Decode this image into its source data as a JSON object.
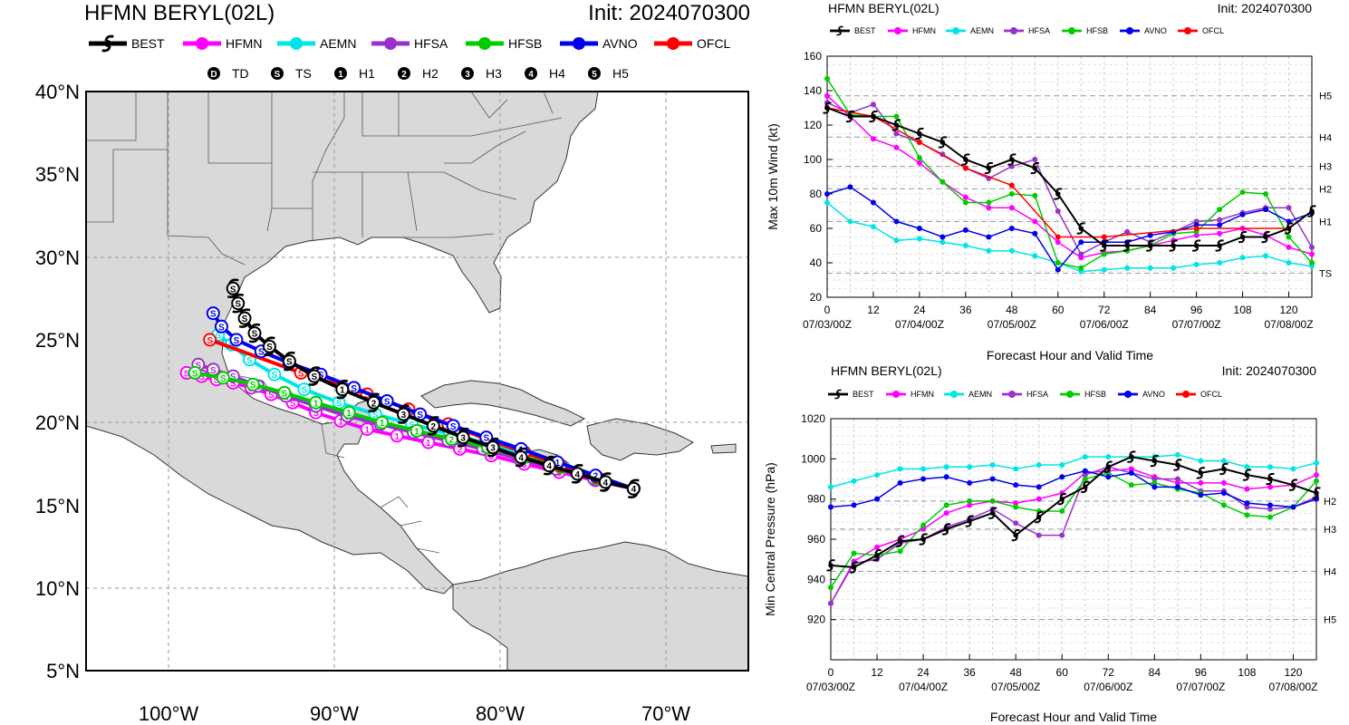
{
  "colors": {
    "BEST": "#000000",
    "HFMN": "#ff00ff",
    "AEMN": "#00e5e5",
    "HFSA": "#9932cc",
    "HFSB": "#00cc00",
    "AVNO": "#0000ee",
    "OFCL": "#ff0000"
  },
  "legend_items": [
    "BEST",
    "HFMN",
    "AEMN",
    "HFSA",
    "HFSB",
    "AVNO",
    "OFCL"
  ],
  "intensity_legend": [
    {
      "sym": "D",
      "label": "TD"
    },
    {
      "sym": "S",
      "label": "TS"
    },
    {
      "sym": "1",
      "label": "H1"
    },
    {
      "sym": "2",
      "label": "H2"
    },
    {
      "sym": "3",
      "label": "H3"
    },
    {
      "sym": "4",
      "label": "H4"
    },
    {
      "sym": "5",
      "label": "H5"
    }
  ],
  "map": {
    "title": "HFMN BERYL(02L)",
    "init": "Init: 2024070300",
    "lat_labels": [
      "40°N",
      "35°N",
      "30°N",
      "25°N",
      "20°N",
      "15°N",
      "10°N",
      "5°N"
    ],
    "lon_labels": [
      "100°W",
      "90°W",
      "80°W",
      "70°W"
    ]
  },
  "chart_data": [
    {
      "type": "line",
      "title": "HFMN BERYL(02L)",
      "init": "Init: 2024070300",
      "xlabel": "Forecast Hour and Valid Time",
      "ylabel": "Max 10m Wind (kt)",
      "xlim": [
        0,
        126
      ],
      "ylim": [
        20,
        160
      ],
      "xticks": [
        0,
        12,
        24,
        36,
        48,
        60,
        72,
        84,
        96,
        108,
        120
      ],
      "yticks": [
        20,
        40,
        60,
        80,
        100,
        120,
        140,
        160
      ],
      "date_labels": [
        {
          "x": 0,
          "label": "07/03/00Z"
        },
        {
          "x": 24,
          "label": "07/04/00Z"
        },
        {
          "x": 48,
          "label": "07/05/00Z"
        },
        {
          "x": 72,
          "label": "07/06/00Z"
        },
        {
          "x": 96,
          "label": "07/07/00Z"
        },
        {
          "x": 120,
          "label": "07/08/00Z"
        }
      ],
      "thresholds": [
        {
          "value": 137,
          "label": "H5"
        },
        {
          "value": 113,
          "label": "H4"
        },
        {
          "value": 96,
          "label": "H3"
        },
        {
          "value": 83,
          "label": "H2"
        },
        {
          "value": 64,
          "label": "H1"
        },
        {
          "value": 34,
          "label": "TS"
        }
      ],
      "series": [
        {
          "name": "BEST",
          "x": [
            0,
            6,
            12,
            18,
            24,
            30,
            36,
            42,
            48,
            54,
            60,
            66,
            72,
            78,
            84,
            90,
            96,
            102,
            108,
            114,
            120,
            126
          ],
          "values": [
            130,
            125,
            125,
            120,
            115,
            110,
            100,
            95,
            100,
            95,
            80,
            60,
            50,
            50,
            50,
            50,
            50,
            50,
            55,
            55,
            60,
            70
          ]
        },
        {
          "name": "HFMN",
          "x": [
            0,
            6,
            12,
            18,
            24,
            30,
            36,
            42,
            48,
            54,
            60,
            66,
            72,
            78,
            84,
            90,
            96,
            102,
            108,
            114,
            120,
            126
          ],
          "values": [
            137,
            125,
            112,
            107,
            98,
            87,
            78,
            72,
            72,
            64,
            52,
            43,
            46,
            47,
            50,
            53,
            56,
            57,
            60,
            56,
            49,
            45
          ]
        },
        {
          "name": "AEMN",
          "x": [
            0,
            6,
            12,
            18,
            24,
            30,
            36,
            42,
            48,
            54,
            60,
            66,
            72,
            78,
            84,
            90,
            96,
            102,
            108,
            114,
            120,
            126
          ],
          "values": [
            75,
            64,
            61,
            53,
            54,
            52,
            50,
            47,
            47,
            44,
            40,
            35,
            36,
            37,
            37,
            37,
            39,
            40,
            43,
            44,
            40,
            38
          ]
        },
        {
          "name": "HFSA",
          "x": [
            0,
            6,
            12,
            18,
            24,
            30,
            36,
            42,
            48,
            54,
            60,
            66,
            72,
            78,
            84,
            90,
            96,
            102,
            108,
            114,
            120,
            126
          ],
          "values": [
            133,
            127,
            132,
            115,
            110,
            103,
            95,
            89,
            96,
            100,
            70,
            45,
            52,
            58,
            52,
            58,
            64,
            65,
            69,
            72,
            72,
            49
          ]
        },
        {
          "name": "HFSB",
          "x": [
            0,
            6,
            12,
            18,
            24,
            30,
            36,
            42,
            48,
            54,
            60,
            66,
            72,
            78,
            84,
            90,
            96,
            102,
            108,
            114,
            120,
            126
          ],
          "values": [
            147,
            126,
            125,
            125,
            101,
            87,
            75,
            75,
            80,
            79,
            40,
            37,
            45,
            47,
            50,
            57,
            58,
            71,
            81,
            80,
            55,
            40
          ]
        },
        {
          "name": "AVNO",
          "x": [
            0,
            6,
            12,
            18,
            24,
            30,
            36,
            42,
            48,
            54,
            60,
            66,
            72,
            78,
            84,
            90,
            96,
            102,
            108,
            114,
            120,
            126
          ],
          "values": [
            80,
            84,
            75,
            64,
            60,
            55,
            59,
            55,
            60,
            57,
            36,
            52,
            52,
            52,
            56,
            58,
            62,
            62,
            68,
            71,
            64,
            69
          ]
        },
        {
          "name": "OFCL",
          "x": [
            0,
            12,
            24,
            36,
            48,
            60,
            72,
            96,
            120
          ],
          "values": [
            130,
            125,
            110,
            95,
            85,
            55,
            55,
            60,
            60
          ]
        }
      ]
    },
    {
      "type": "line",
      "title": "HFMN BERYL(02L)",
      "init": "Init: 2024070300",
      "xlabel": "Forecast Hour and Valid Time",
      "ylabel": "Min Central Pressure (hPa)",
      "xlim": [
        0,
        126
      ],
      "ylim": [
        900,
        1020
      ],
      "xticks": [
        0,
        12,
        24,
        36,
        48,
        60,
        72,
        84,
        96,
        108,
        120
      ],
      "yticks": [
        920,
        940,
        960,
        980,
        1000,
        1020
      ],
      "date_labels": [
        {
          "x": 0,
          "label": "07/03/00Z"
        },
        {
          "x": 24,
          "label": "07/04/00Z"
        },
        {
          "x": 48,
          "label": "07/05/00Z"
        },
        {
          "x": 72,
          "label": "07/06/00Z"
        },
        {
          "x": 96,
          "label": "07/07/00Z"
        },
        {
          "x": 120,
          "label": "07/08/00Z"
        }
      ],
      "thresholds": [
        {
          "value": 979,
          "label": "H2"
        },
        {
          "value": 965,
          "label": "H3"
        },
        {
          "value": 944,
          "label": "H4"
        },
        {
          "value": 920,
          "label": "H5"
        }
      ],
      "series": [
        {
          "name": "BEST",
          "x": [
            0,
            6,
            12,
            18,
            24,
            30,
            36,
            42,
            48,
            54,
            60,
            66,
            72,
            78,
            84,
            90,
            96,
            102,
            108,
            114,
            120,
            126
          ],
          "values": [
            947,
            946,
            952,
            959,
            960,
            965,
            969,
            973,
            962,
            971,
            980,
            986,
            996,
            1001,
            999,
            997,
            993,
            995,
            992,
            990,
            987,
            983
          ]
        },
        {
          "name": "HFMN",
          "x": [
            0,
            6,
            12,
            18,
            24,
            30,
            36,
            42,
            48,
            54,
            60,
            66,
            72,
            78,
            84,
            90,
            96,
            102,
            108,
            114,
            120,
            126
          ],
          "values": [
            928,
            949,
            956,
            960,
            965,
            973,
            977,
            979,
            978,
            980,
            983,
            993,
            994,
            995,
            991,
            988,
            988,
            988,
            985,
            986,
            987,
            992
          ]
        },
        {
          "name": "AEMN",
          "x": [
            0,
            6,
            12,
            18,
            24,
            30,
            36,
            42,
            48,
            54,
            60,
            66,
            72,
            78,
            84,
            90,
            96,
            102,
            108,
            114,
            120,
            126
          ],
          "values": [
            986,
            989,
            992,
            995,
            995,
            996,
            996,
            997,
            995,
            997,
            997,
            1001,
            1001,
            1001,
            1001,
            1002,
            999,
            999,
            996,
            996,
            995,
            998
          ]
        },
        {
          "name": "HFSA",
          "x": [
            0,
            6,
            12,
            18,
            24,
            30,
            36,
            42,
            48,
            54,
            60,
            66,
            72,
            78,
            84,
            90,
            96,
            102,
            108,
            114,
            120,
            126
          ],
          "values": [
            928,
            948,
            950,
            958,
            960,
            966,
            970,
            975,
            968,
            962,
            962,
            992,
            996,
            993,
            990,
            990,
            984,
            984,
            976,
            975,
            976,
            981
          ]
        },
        {
          "name": "HFSB",
          "x": [
            0,
            6,
            12,
            18,
            24,
            30,
            36,
            42,
            48,
            54,
            60,
            66,
            72,
            78,
            84,
            90,
            96,
            102,
            108,
            114,
            120,
            126
          ],
          "values": [
            936,
            953,
            952,
            954,
            967,
            977,
            979,
            979,
            976,
            974,
            974,
            990,
            993,
            987,
            988,
            985,
            983,
            977,
            972,
            971,
            976,
            989
          ]
        },
        {
          "name": "AVNO",
          "x": [
            0,
            6,
            12,
            18,
            24,
            30,
            36,
            42,
            48,
            54,
            60,
            66,
            72,
            78,
            84,
            90,
            96,
            102,
            108,
            114,
            120,
            126
          ],
          "values": [
            976,
            977,
            980,
            988,
            990,
            991,
            988,
            990,
            987,
            986,
            991,
            994,
            991,
            993,
            986,
            986,
            982,
            983,
            978,
            977,
            976,
            980
          ]
        },
        {
          "name": "OFCL",
          "x": [],
          "values": []
        }
      ]
    }
  ]
}
